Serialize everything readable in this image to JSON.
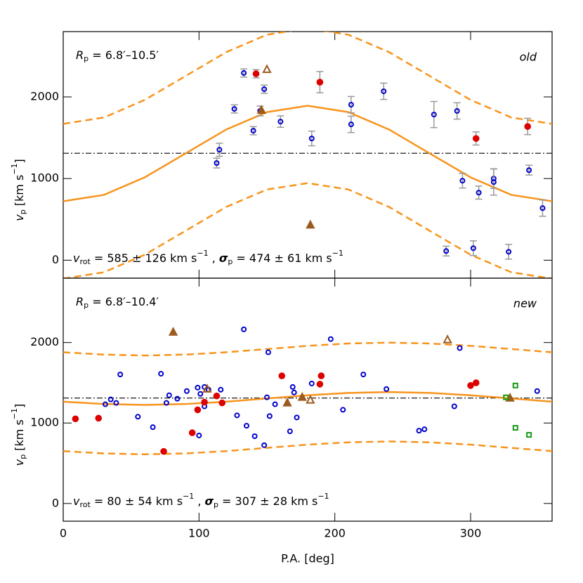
{
  "chart_data": [
    {
      "type": "scatter",
      "xlim": [
        0,
        360
      ],
      "xticks": [
        0,
        100,
        200,
        300
      ],
      "xtick_labels": false,
      "ylim": [
        -220,
        2800
      ],
      "yticks": [
        0,
        1000,
        2000
      ],
      "ylabel": [
        {
          "text": "v",
          "style": "italic"
        },
        {
          "text": "p",
          "style": "sub"
        },
        {
          "text": " [km s"
        },
        {
          "text": "−1",
          "style": "sup"
        },
        {
          "text": "]"
        }
      ],
      "label": [
        {
          "text": "R",
          "style": "italic"
        },
        {
          "text": "p",
          "style": "sub"
        },
        {
          "text": " = 6.8′–10.5′"
        }
      ],
      "tag": "old",
      "tag_color": "#999999",
      "stats": [
        {
          "text": "v",
          "style": "italic"
        },
        {
          "text": "rot",
          "style": "sub"
        },
        {
          "text": " = 585 ± 126 km s"
        },
        {
          "text": "−1",
          "style": "sup"
        },
        {
          "text": " , "
        },
        {
          "text": "σ",
          "style": "bold-italic"
        },
        {
          "text": "p",
          "style": "sub"
        },
        {
          "text": " = 474 ± 61 km s"
        },
        {
          "text": "−1",
          "style": "sup"
        }
      ],
      "hline": 1310,
      "curves": [
        {
          "style": "solid",
          "color": "#f7941d",
          "x": [
            0,
            30,
            60,
            90,
            120,
            150,
            180,
            210,
            240,
            270,
            300,
            330,
            360
          ],
          "values": [
            722,
            800,
            1015,
            1307,
            1600,
            1814,
            1892,
            1814,
            1600,
            1307,
            1015,
            800,
            722
          ]
        },
        {
          "style": "dashed",
          "color": "#f7941d",
          "x": [
            0,
            30,
            60,
            90,
            120,
            150,
            180,
            210,
            240,
            270,
            300,
            330,
            360
          ],
          "values": [
            1670,
            1748,
            1963,
            2255,
            2548,
            2762,
            2840,
            2762,
            2548,
            2255,
            1963,
            1748,
            1670
          ]
        },
        {
          "style": "dashed",
          "color": "#f7941d",
          "x": [
            0,
            30,
            60,
            90,
            120,
            150,
            180,
            210,
            240,
            270,
            300,
            330,
            360
          ],
          "values": [
            -226,
            -148,
            67,
            359,
            652,
            866,
            944,
            866,
            652,
            359,
            67,
            -148,
            -226
          ]
        }
      ],
      "series": [
        {
          "marker": "open-circle",
          "color": "#0000cc",
          "x": [
            115,
            113,
            126,
            133,
            140,
            145,
            148,
            160,
            183,
            212,
            212,
            236,
            273,
            290,
            294,
            306,
            317,
            317,
            282,
            302,
            328,
            343,
            353
          ],
          "values": [
            1353,
            1190,
            1853,
            2293,
            1586,
            1828,
            2095,
            1698,
            1491,
            1664,
            1905,
            2069,
            1784,
            1828,
            974,
            828,
            1000,
            957,
            112,
            147,
            103,
            1103,
            638
          ],
          "errors": [
            80,
            60,
            50,
            50,
            50,
            60,
            50,
            70,
            90,
            100,
            100,
            100,
            160,
            100,
            90,
            80,
            120,
            160,
            60,
            90,
            90,
            60,
            100
          ]
        },
        {
          "marker": "filled-circle",
          "color": "#dd0000",
          "x": [
            142,
            189,
            304,
            342
          ],
          "values": [
            2284,
            2181,
            1491,
            1638
          ],
          "errors": [
            50,
            130,
            80,
            100
          ]
        },
        {
          "marker": "filled-triangle",
          "color": "#9c5a1e",
          "x": [
            146,
            182
          ],
          "values": [
            1836,
            431
          ]
        },
        {
          "marker": "open-triangle",
          "color": "#9c5a1e",
          "x": [
            150
          ],
          "values": [
            2336
          ]
        }
      ]
    },
    {
      "type": "scatter",
      "xlim": [
        0,
        360
      ],
      "xticks": [
        0,
        100,
        200,
        300
      ],
      "xtick_labels": true,
      "ylim": [
        -220,
        2800
      ],
      "yticks": [
        0,
        1000,
        2000
      ],
      "xlabel": "P.A. [deg]",
      "ylabel": [
        {
          "text": "v",
          "style": "italic"
        },
        {
          "text": "p",
          "style": "sub"
        },
        {
          "text": " [km s"
        },
        {
          "text": "−1",
          "style": "sup"
        },
        {
          "text": "]"
        }
      ],
      "label": [
        {
          "text": "R",
          "style": "italic"
        },
        {
          "text": "p",
          "style": "sub"
        },
        {
          "text": " = 6.8′–10.4′"
        }
      ],
      "tag": "new",
      "tag_color": "#000000",
      "stats": [
        {
          "text": "v",
          "style": "italic"
        },
        {
          "text": "rot",
          "style": "sub"
        },
        {
          "text": " = 80 ± 54 km s"
        },
        {
          "text": "−1",
          "style": "sup"
        },
        {
          "text": " , "
        },
        {
          "text": "σ",
          "style": "bold-italic"
        },
        {
          "text": "p",
          "style": "sub"
        },
        {
          "text": " = 307 ± 28 km s"
        },
        {
          "text": "−1",
          "style": "sup"
        }
      ],
      "hline": 1310,
      "curves": [
        {
          "style": "solid",
          "color": "#f7941d",
          "x": [
            0,
            30,
            60,
            90,
            120,
            150,
            180,
            210,
            240,
            270,
            300,
            330,
            360
          ],
          "values": [
            1265,
            1236,
            1225,
            1236,
            1265,
            1305,
            1345,
            1374,
            1385,
            1374,
            1345,
            1305,
            1265
          ]
        },
        {
          "style": "dashed",
          "color": "#f7941d",
          "x": [
            0,
            30,
            60,
            90,
            120,
            150,
            180,
            210,
            240,
            270,
            300,
            330,
            360
          ],
          "values": [
            1879,
            1850,
            1839,
            1850,
            1879,
            1919,
            1959,
            1988,
            1999,
            1988,
            1959,
            1919,
            1879
          ]
        },
        {
          "style": "dashed",
          "color": "#f7941d",
          "x": [
            0,
            30,
            60,
            90,
            120,
            150,
            180,
            210,
            240,
            270,
            300,
            330,
            360
          ],
          "values": [
            651,
            622,
            611,
            622,
            651,
            691,
            731,
            760,
            771,
            760,
            731,
            691,
            651
          ]
        }
      ],
      "series": [
        {
          "marker": "open-circle",
          "color": "#0000cc",
          "x": [
            31,
            35,
            39,
            42,
            55,
            66,
            72,
            76,
            78,
            84,
            91,
            99,
            100,
            101,
            104,
            104,
            107,
            116,
            128,
            133,
            135,
            141,
            148,
            150,
            151,
            152,
            156,
            167,
            169,
            170,
            172,
            183,
            197,
            206,
            221,
            238,
            262,
            266,
            288,
            292,
            349
          ],
          "values": [
            1233,
            1293,
            1250,
            1603,
            1078,
            948,
            1612,
            1250,
            1345,
            1302,
            1397,
            1440,
            845,
            1362,
            1448,
            1207,
            1414,
            1414,
            1095,
            2164,
            966,
            836,
            724,
            1319,
            1879,
            1086,
            1233,
            897,
            1448,
            1379,
            1069,
            1491,
            2043,
            1164,
            1603,
            1422,
            905,
            922,
            1207,
            1931,
            1397
          ]
        },
        {
          "marker": "filled-circle",
          "color": "#dd0000",
          "x": [
            9,
            26,
            74,
            95,
            99,
            104,
            113,
            117,
            161,
            189,
            190,
            300,
            304
          ],
          "values": [
            1052,
            1060,
            647,
            879,
            1164,
            1259,
            1336,
            1250,
            1586,
            1483,
            1586,
            1466,
            1500
          ]
        },
        {
          "marker": "filled-triangle",
          "color": "#9c5a1e",
          "x": [
            81,
            165,
            176,
            329
          ],
          "values": [
            2129,
            1250,
            1319,
            1310
          ]
        },
        {
          "marker": "open-triangle",
          "color": "#9c5a1e",
          "x": [
            106,
            182,
            283
          ],
          "values": [
            1422,
            1284,
            2034
          ]
        },
        {
          "marker": "open-square",
          "color": "#1a9a1a",
          "x": [
            326,
            333,
            333,
            343
          ],
          "values": [
            1319,
            1466,
            940,
            853
          ]
        }
      ]
    }
  ]
}
